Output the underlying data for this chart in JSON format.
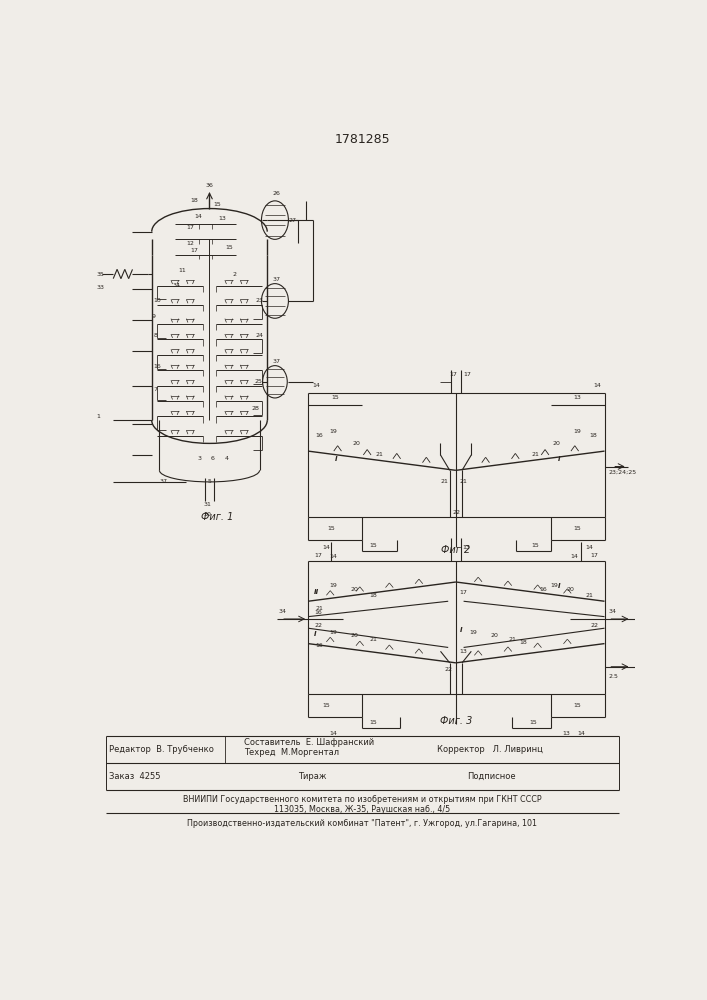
{
  "patent_number": "1781285",
  "fig1_label": "Фиг. 1",
  "fig2_label": "Фиг 2",
  "fig3_label": "Фиг. 3",
  "editor_line": "Редактор  В. Трубченко",
  "composer_line": "Составитель  Е. Шафранский",
  "techred_line": "Техред  М.Моргентал",
  "corrector_line": "Корректор   Л. Ливринц",
  "order_line": "Заказ  4255",
  "tirazh_line": "Тираж",
  "podpisnoe_line": "Подписное",
  "vniipи_line": "ВНИИПИ Государственного комитета по изобретениям и открытиям при ГКНТ СССР",
  "address_line": "113035, Москва, Ж-35, Раушская наб., 4/5",
  "production_line": "Производственно-издательский комбинат \"Патент\", г. Ужгород, ул.Гагарина, 101",
  "bg_color": "#f0ede8",
  "line_color": "#2a2520",
  "text_color": "#2a2520"
}
